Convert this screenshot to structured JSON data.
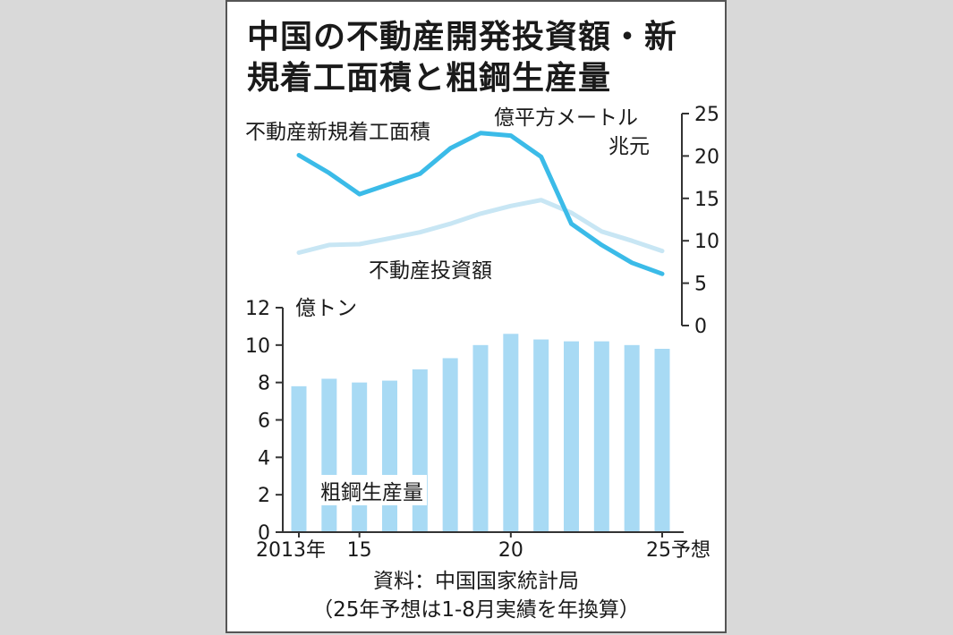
{
  "title_lines": [
    "中国の不動産開発投資額・新",
    "規着工面積と粗鋼生産量"
  ],
  "source": "資料：中国国家統計局",
  "note": "（25年予想は1-8月実績を年換算）",
  "colors": {
    "floor_area": "#3bbbe8",
    "investment": "#c8e6f4",
    "steel": "#a8daf4"
  },
  "chart_data": [
    {
      "type": "line",
      "x": [
        2013,
        2014,
        2015,
        2016,
        2017,
        2018,
        2019,
        2020,
        2021,
        2022,
        2023,
        2024,
        2025
      ],
      "series": [
        {
          "name": "不動産新規着工面積",
          "unit": "億平方メートル",
          "values": [
            20.1,
            18.0,
            15.5,
            16.7,
            17.9,
            20.9,
            22.7,
            22.4,
            19.9,
            12.0,
            9.5,
            7.4,
            6.1
          ]
        },
        {
          "name": "不動産投資額",
          "unit": "兆元",
          "values": [
            8.6,
            9.5,
            9.6,
            10.3,
            11.0,
            12.0,
            13.2,
            14.1,
            14.8,
            13.3,
            11.1,
            10.0,
            8.8
          ]
        }
      ],
      "ylim": [
        0,
        25
      ],
      "yticks": [
        0,
        5,
        10,
        15,
        20,
        25
      ],
      "ylabel_lines": [
        "億平方メートル",
        "兆元"
      ],
      "y_axis_side": "right"
    },
    {
      "type": "bar",
      "x": [
        2013,
        2014,
        2015,
        2016,
        2017,
        2018,
        2019,
        2020,
        2021,
        2022,
        2023,
        2024,
        2025
      ],
      "series": [
        {
          "name": "粗鋼生産量",
          "unit": "億トン",
          "values": [
            7.8,
            8.2,
            8.0,
            8.1,
            8.7,
            9.3,
            10.0,
            10.6,
            10.3,
            10.2,
            10.2,
            10.0,
            9.8
          ]
        }
      ],
      "ylim": [
        0,
        12
      ],
      "yticks": [
        0,
        2,
        4,
        6,
        8,
        10,
        12
      ],
      "ylabel": "億トン",
      "y_axis_side": "left",
      "xtick_labels": [
        {
          "year": 2013,
          "text": "2013年"
        },
        {
          "year": 2015,
          "text": "15"
        },
        {
          "year": 2020,
          "text": "20"
        },
        {
          "year": 2025,
          "text": "25予想"
        }
      ]
    }
  ]
}
